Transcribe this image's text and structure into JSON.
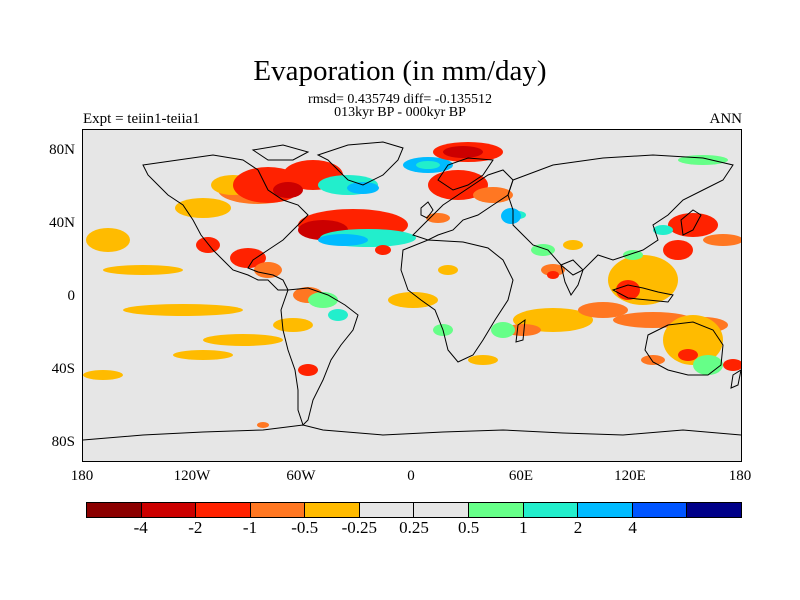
{
  "title": "Evaporation (in mm/day)",
  "stats_line1": "rmsd= 0.435749 diff= -0.135512",
  "stats_line2": "013kyr BP - 000kyr BP",
  "experiment_label": "Expt = teiin1-teiia1",
  "season_label": "ANN",
  "y_axis": {
    "ticks": [
      "80N",
      "40N",
      "0",
      "40S",
      "80S"
    ]
  },
  "x_axis": {
    "ticks": [
      "180",
      "120W",
      "60W",
      "0",
      "60E",
      "120E",
      "180"
    ]
  },
  "colorbar": {
    "colors": [
      "#8b0000",
      "#cc0000",
      "#ff2200",
      "#ff7722",
      "#ffbb00",
      "#e6e6e6",
      "#e6e6e6",
      "#66ff88",
      "#22eecc",
      "#00bbff",
      "#0055ff",
      "#000088"
    ],
    "labels": [
      "-4",
      "-2",
      "-1",
      "-0.5",
      "-0.25",
      "0.25",
      "0.5",
      "1",
      "2",
      "4"
    ]
  },
  "colors": {
    "background": "#e6e6e6",
    "coast": "#000000"
  }
}
